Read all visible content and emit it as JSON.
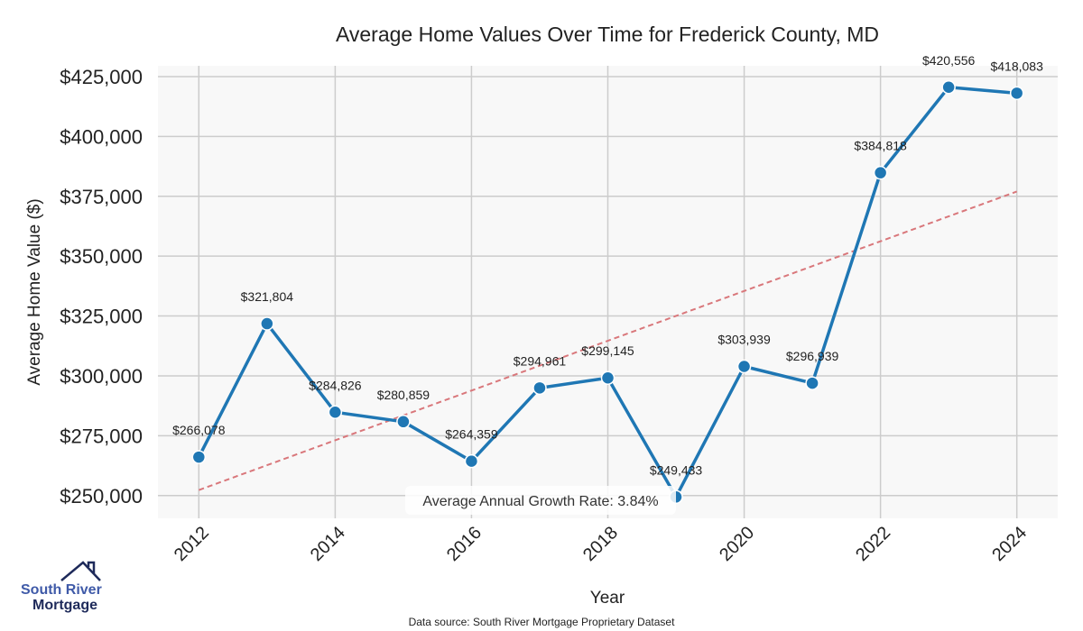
{
  "chart_data": {
    "type": "line",
    "title": "Average Home Values Over Time for Frederick County, MD",
    "xlabel": "Year",
    "ylabel": "Average Home Value ($)",
    "x": [
      2012,
      2013,
      2014,
      2015,
      2016,
      2017,
      2018,
      2019,
      2020,
      2021,
      2022,
      2023,
      2024
    ],
    "series": [
      {
        "name": "Average Home Value",
        "values": [
          266078,
          321804,
          284826,
          280859,
          264359,
          294961,
          299145,
          249433,
          303939,
          296939,
          384818,
          420556,
          418083
        ],
        "color": "#1f77b4"
      }
    ],
    "data_labels": [
      "$266,078",
      "$321,804",
      "$284,826",
      "$280,859",
      "$264,359",
      "$294,961",
      "$299,145",
      "$249,433",
      "$303,939",
      "$296,939",
      "$384,818",
      "$420,556",
      "$418,083"
    ],
    "trend": {
      "start": [
        2012,
        252300
      ],
      "end": [
        2024,
        377000
      ],
      "color": "#d9777b"
    },
    "xticks": [
      2012,
      2014,
      2016,
      2018,
      2020,
      2022,
      2024
    ],
    "yticks": [
      250000,
      275000,
      300000,
      325000,
      350000,
      375000,
      400000,
      425000
    ],
    "ytick_labels": [
      "$250,000",
      "$275,000",
      "$300,000",
      "$325,000",
      "$350,000",
      "$375,000",
      "$400,000",
      "$425,000"
    ],
    "xlim": [
      2011.4,
      2024.6
    ],
    "ylim": [
      240500,
      429500
    ],
    "grid": true,
    "annotation": "Average Annual Growth Rate: 3.84%",
    "source": "Data source: South River Mortgage Proprietary Dataset"
  },
  "logo": {
    "line1": "South River",
    "line2": "Mortgage"
  }
}
